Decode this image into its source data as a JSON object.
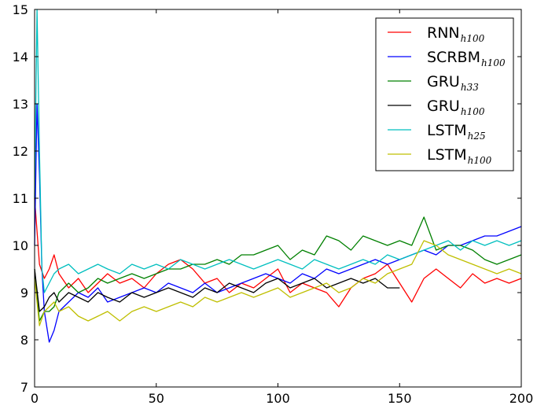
{
  "chart_data": {
    "type": "line",
    "title": "",
    "xlabel": "",
    "ylabel": "",
    "xlim": [
      0,
      200
    ],
    "ylim": [
      7,
      15
    ],
    "xticks": [
      0,
      50,
      100,
      150,
      200
    ],
    "yticks": [
      7,
      8,
      9,
      10,
      11,
      12,
      13,
      14,
      15
    ],
    "grid": false,
    "legend_position": "top-right",
    "series": [
      {
        "name": "RNN",
        "subscript": "h100",
        "color": "#ff0000",
        "x": [
          0,
          2,
          4,
          6,
          8,
          10,
          14,
          18,
          22,
          26,
          30,
          35,
          40,
          45,
          50,
          55,
          60,
          65,
          70,
          75,
          80,
          85,
          90,
          95,
          100,
          105,
          110,
          115,
          120,
          125,
          130,
          135,
          140,
          145,
          150,
          155,
          160,
          165,
          170,
          175,
          180,
          185,
          190,
          195,
          200
        ],
        "y": [
          11.0,
          9.6,
          9.3,
          9.5,
          9.8,
          9.4,
          9.1,
          9.3,
          9.0,
          9.2,
          9.4,
          9.2,
          9.3,
          9.1,
          9.4,
          9.6,
          9.7,
          9.5,
          9.2,
          9.3,
          9.0,
          9.2,
          9.1,
          9.3,
          9.5,
          9.0,
          9.2,
          9.1,
          9.0,
          8.7,
          9.1,
          9.3,
          9.4,
          9.6,
          9.2,
          8.8,
          9.3,
          9.5,
          9.3,
          9.1,
          9.4,
          9.2,
          9.3,
          9.2,
          9.3
        ]
      },
      {
        "name": "SCRBM",
        "subscript": "h100",
        "color": "#0000ff",
        "x": [
          0,
          1,
          2,
          3,
          4,
          6,
          8,
          10,
          14,
          18,
          22,
          26,
          30,
          35,
          40,
          45,
          50,
          55,
          60,
          65,
          70,
          75,
          80,
          85,
          90,
          95,
          100,
          105,
          110,
          115,
          120,
          125,
          130,
          135,
          140,
          145,
          150,
          155,
          160,
          165,
          170,
          175,
          180,
          185,
          190,
          195,
          200
        ],
        "y": [
          10.0,
          13.0,
          11.5,
          9.5,
          8.6,
          7.95,
          8.2,
          8.6,
          8.8,
          9.0,
          8.9,
          9.1,
          8.8,
          8.9,
          9.0,
          9.1,
          9.0,
          9.2,
          9.1,
          9.0,
          9.2,
          9.0,
          9.1,
          9.2,
          9.3,
          9.4,
          9.3,
          9.2,
          9.4,
          9.3,
          9.5,
          9.4,
          9.5,
          9.6,
          9.7,
          9.6,
          9.7,
          9.8,
          9.9,
          9.8,
          10.0,
          10.0,
          10.1,
          10.2,
          10.2,
          10.3,
          10.4
        ]
      },
      {
        "name": "GRU",
        "subscript": "h33",
        "color": "#008000",
        "x": [
          0,
          2,
          4,
          6,
          8,
          10,
          14,
          18,
          22,
          26,
          30,
          35,
          40,
          45,
          50,
          55,
          60,
          65,
          70,
          75,
          80,
          85,
          90,
          95,
          100,
          105,
          110,
          115,
          120,
          125,
          130,
          135,
          140,
          145,
          150,
          155,
          160,
          165,
          170,
          175,
          180,
          185,
          190,
          195,
          200
        ],
        "y": [
          9.5,
          8.4,
          8.6,
          8.6,
          8.7,
          9.0,
          9.2,
          9.0,
          9.1,
          9.3,
          9.2,
          9.3,
          9.4,
          9.3,
          9.4,
          9.5,
          9.5,
          9.6,
          9.6,
          9.7,
          9.6,
          9.8,
          9.8,
          9.9,
          10.0,
          9.7,
          9.9,
          9.8,
          10.2,
          10.1,
          9.9,
          10.2,
          10.1,
          10.0,
          10.1,
          10.0,
          10.6,
          9.9,
          10.0,
          10.0,
          9.9,
          9.7,
          9.6,
          9.7,
          9.8
        ]
      },
      {
        "name": "GRU",
        "subscript": "h100",
        "color": "#000000",
        "x": [
          0,
          2,
          4,
          6,
          8,
          10,
          14,
          18,
          22,
          26,
          30,
          35,
          40,
          45,
          50,
          55,
          60,
          65,
          70,
          75,
          80,
          85,
          90,
          95,
          100,
          105,
          110,
          115,
          120,
          125,
          130,
          135,
          140,
          145,
          150
        ],
        "y": [
          9.5,
          8.6,
          8.7,
          8.9,
          9.0,
          8.8,
          9.0,
          8.9,
          8.8,
          9.0,
          8.9,
          8.8,
          9.0,
          8.9,
          9.0,
          9.1,
          9.0,
          8.9,
          9.1,
          9.0,
          9.2,
          9.1,
          9.0,
          9.2,
          9.3,
          9.1,
          9.2,
          9.3,
          9.1,
          9.2,
          9.3,
          9.2,
          9.3,
          9.1,
          9.1
        ]
      },
      {
        "name": "LSTM",
        "subscript": "h25",
        "color": "#00bfbf",
        "x": [
          0,
          1,
          2,
          3,
          4,
          6,
          8,
          10,
          14,
          18,
          22,
          26,
          30,
          35,
          40,
          45,
          50,
          55,
          60,
          65,
          70,
          75,
          80,
          85,
          90,
          95,
          100,
          105,
          110,
          115,
          120,
          125,
          130,
          135,
          140,
          145,
          150,
          155,
          160,
          165,
          170,
          175,
          180,
          185,
          190,
          195,
          200
        ],
        "y": [
          11.0,
          15.0,
          12.0,
          9.5,
          9.0,
          9.2,
          9.4,
          9.5,
          9.6,
          9.4,
          9.5,
          9.6,
          9.5,
          9.4,
          9.6,
          9.5,
          9.6,
          9.5,
          9.7,
          9.6,
          9.5,
          9.6,
          9.7,
          9.6,
          9.5,
          9.6,
          9.7,
          9.6,
          9.5,
          9.7,
          9.6,
          9.5,
          9.6,
          9.7,
          9.6,
          9.8,
          9.7,
          9.8,
          9.9,
          10.0,
          10.1,
          9.9,
          10.1,
          10.0,
          10.1,
          10.0,
          10.1
        ]
      },
      {
        "name": "LSTM",
        "subscript": "h100",
        "color": "#bfbf00",
        "x": [
          0,
          2,
          4,
          6,
          8,
          10,
          14,
          18,
          22,
          26,
          30,
          35,
          40,
          45,
          50,
          55,
          60,
          65,
          70,
          75,
          80,
          85,
          90,
          95,
          100,
          105,
          110,
          115,
          120,
          125,
          130,
          135,
          140,
          145,
          150,
          155,
          160,
          165,
          170,
          175,
          180,
          185,
          190,
          195,
          200
        ],
        "y": [
          9.3,
          8.3,
          8.6,
          8.7,
          8.8,
          8.6,
          8.7,
          8.5,
          8.4,
          8.5,
          8.6,
          8.4,
          8.6,
          8.7,
          8.6,
          8.7,
          8.8,
          8.7,
          8.9,
          8.8,
          8.9,
          9.0,
          8.9,
          9.0,
          9.1,
          8.9,
          9.0,
          9.1,
          9.2,
          9.0,
          9.1,
          9.3,
          9.2,
          9.4,
          9.5,
          9.6,
          10.1,
          10.0,
          9.8,
          9.7,
          9.6,
          9.5,
          9.4,
          9.5,
          9.4
        ]
      }
    ]
  }
}
